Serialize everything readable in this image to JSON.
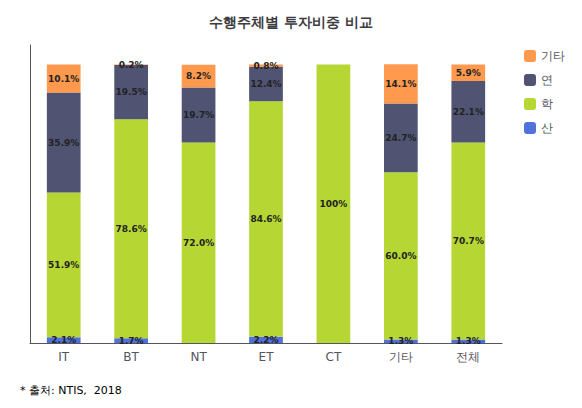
{
  "chart_data": {
    "type": "bar",
    "title": "수행주체별 투자비중 비교",
    "footnote": "* 출처: NTIS,  2018",
    "categories": [
      "IT",
      "BT",
      "NT",
      "ET",
      "CT",
      "기타",
      "전체"
    ],
    "stacked": true,
    "series": [
      {
        "name": "산",
        "values": [
          2.1,
          1.7,
          0.0,
          2.2,
          0.0,
          1.3,
          1.3
        ],
        "value_labels": [
          "2.1%",
          "1.7%",
          null,
          "2.2%",
          null,
          "1.3%",
          "1.3%"
        ]
      },
      {
        "name": "학",
        "values": [
          51.9,
          78.6,
          72.0,
          84.6,
          100.0,
          60.0,
          70.7
        ],
        "value_labels": [
          "51.9%",
          "78.6%",
          "72.0%",
          "84.6%",
          "100%",
          "60.0%",
          "70.7%"
        ]
      },
      {
        "name": "연",
        "values": [
          35.9,
          19.5,
          19.7,
          12.4,
          0.0,
          24.7,
          22.1
        ],
        "value_labels": [
          "35.9%",
          "19.5%",
          "19.7%",
          "12.4%",
          null,
          "24.7%",
          "22.1%"
        ]
      },
      {
        "name": "기타",
        "values": [
          10.1,
          0.2,
          8.2,
          0.8,
          0.0,
          14.1,
          5.9
        ],
        "value_labels": [
          "10.1%",
          "0.2%",
          "8.2%",
          "0.8%",
          null,
          "14.1%",
          "5.9%"
        ]
      }
    ],
    "ylim": [
      0,
      107
    ],
    "tick_labels": "x",
    "grid": false,
    "legend": "upper right"
  }
}
